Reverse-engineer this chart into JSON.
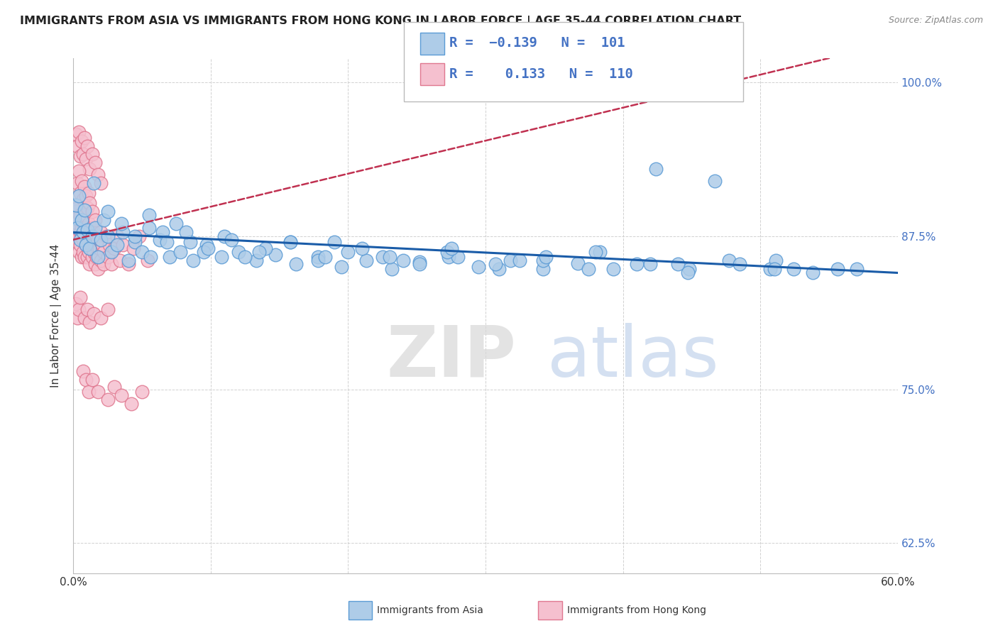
{
  "title": "IMMIGRANTS FROM ASIA VS IMMIGRANTS FROM HONG KONG IN LABOR FORCE | AGE 35-44 CORRELATION CHART",
  "source": "Source: ZipAtlas.com",
  "ylabel": "In Labor Force | Age 35-44",
  "x_min": 0.0,
  "x_max": 0.6,
  "y_min": 0.6,
  "y_max": 1.02,
  "y_ticks": [
    0.625,
    0.75,
    0.875,
    1.0
  ],
  "y_tick_labels": [
    "62.5%",
    "75.0%",
    "87.5%",
    "100.0%"
  ],
  "blue_color": "#aecce8",
  "blue_edge": "#5b9bd5",
  "pink_color": "#f5c0cf",
  "pink_edge": "#e07890",
  "blue_line_color": "#1a5ca8",
  "pink_line_color": "#c03050",
  "legend_box_blue": "#aecce8",
  "legend_box_pink": "#f5c0cf",
  "R_blue": -0.139,
  "N_blue": 101,
  "R_pink": 0.133,
  "N_pink": 110,
  "legend_label_blue": "Immigrants from Asia",
  "legend_label_pink": "Immigrants from Hong Kong",
  "blue_scatter_x": [
    0.001,
    0.002,
    0.003,
    0.004,
    0.005,
    0.006,
    0.007,
    0.008,
    0.009,
    0.01,
    0.012,
    0.014,
    0.016,
    0.018,
    0.02,
    0.022,
    0.025,
    0.028,
    0.032,
    0.036,
    0.04,
    0.045,
    0.05,
    0.056,
    0.063,
    0.07,
    0.078,
    0.087,
    0.097,
    0.108,
    0.12,
    0.133,
    0.147,
    0.162,
    0.178,
    0.195,
    0.213,
    0.232,
    0.252,
    0.273,
    0.295,
    0.318,
    0.342,
    0.367,
    0.393,
    0.42,
    0.448,
    0.477,
    0.507,
    0.538,
    0.57,
    0.055,
    0.065,
    0.075,
    0.085,
    0.095,
    0.11,
    0.125,
    0.14,
    0.158,
    0.178,
    0.2,
    0.225,
    0.252,
    0.28,
    0.31,
    0.342,
    0.375,
    0.41,
    0.447,
    0.485,
    0.524,
    0.015,
    0.025,
    0.035,
    0.045,
    0.055,
    0.068,
    0.082,
    0.098,
    0.115,
    0.135,
    0.158,
    0.183,
    0.21,
    0.24,
    0.272,
    0.307,
    0.344,
    0.383,
    0.424,
    0.467,
    0.511,
    0.556,
    0.19,
    0.23,
    0.275,
    0.325,
    0.38,
    0.44,
    0.51
  ],
  "blue_scatter_y": [
    0.89,
    0.9,
    0.882,
    0.908,
    0.872,
    0.888,
    0.878,
    0.896,
    0.868,
    0.88,
    0.865,
    0.875,
    0.882,
    0.858,
    0.872,
    0.888,
    0.875,
    0.862,
    0.868,
    0.878,
    0.855,
    0.87,
    0.862,
    0.858,
    0.872,
    0.858,
    0.862,
    0.855,
    0.868,
    0.858,
    0.862,
    0.855,
    0.86,
    0.852,
    0.858,
    0.85,
    0.855,
    0.848,
    0.854,
    0.858,
    0.85,
    0.855,
    0.848,
    0.853,
    0.848,
    0.852,
    0.848,
    0.855,
    0.848,
    0.845,
    0.848,
    0.892,
    0.878,
    0.885,
    0.87,
    0.862,
    0.875,
    0.858,
    0.865,
    0.87,
    0.855,
    0.862,
    0.858,
    0.852,
    0.858,
    0.848,
    0.855,
    0.848,
    0.852,
    0.845,
    0.852,
    0.848,
    0.918,
    0.895,
    0.885,
    0.875,
    0.882,
    0.87,
    0.878,
    0.865,
    0.872,
    0.862,
    0.87,
    0.858,
    0.865,
    0.855,
    0.862,
    0.852,
    0.858,
    0.862,
    0.93,
    0.92,
    0.855,
    0.848,
    0.87,
    0.858,
    0.865,
    0.855,
    0.862,
    0.852,
    0.848
  ],
  "pink_scatter_x": [
    0.001,
    0.001,
    0.001,
    0.001,
    0.002,
    0.002,
    0.002,
    0.003,
    0.003,
    0.003,
    0.004,
    0.004,
    0.004,
    0.005,
    0.005,
    0.005,
    0.006,
    0.006,
    0.006,
    0.007,
    0.007,
    0.007,
    0.008,
    0.008,
    0.008,
    0.009,
    0.009,
    0.01,
    0.01,
    0.01,
    0.011,
    0.011,
    0.012,
    0.012,
    0.013,
    0.013,
    0.014,
    0.014,
    0.015,
    0.015,
    0.016,
    0.016,
    0.017,
    0.017,
    0.018,
    0.018,
    0.019,
    0.02,
    0.02,
    0.021,
    0.022,
    0.022,
    0.024,
    0.025,
    0.026,
    0.028,
    0.03,
    0.032,
    0.034,
    0.036,
    0.04,
    0.044,
    0.048,
    0.054,
    0.002,
    0.003,
    0.004,
    0.005,
    0.006,
    0.007,
    0.008,
    0.009,
    0.01,
    0.012,
    0.014,
    0.016,
    0.018,
    0.02,
    0.003,
    0.004,
    0.005,
    0.006,
    0.007,
    0.008,
    0.009,
    0.01,
    0.011,
    0.012,
    0.014,
    0.016,
    0.002,
    0.003,
    0.004,
    0.005,
    0.008,
    0.01,
    0.012,
    0.015,
    0.02,
    0.025,
    0.007,
    0.009,
    0.011,
    0.014,
    0.018,
    0.025,
    0.03,
    0.035,
    0.042,
    0.05
  ],
  "pink_scatter_y": [
    0.882,
    0.895,
    0.878,
    0.9,
    0.888,
    0.875,
    0.895,
    0.87,
    0.885,
    0.898,
    0.875,
    0.888,
    0.862,
    0.878,
    0.892,
    0.868,
    0.882,
    0.875,
    0.858,
    0.872,
    0.885,
    0.862,
    0.878,
    0.892,
    0.858,
    0.875,
    0.868,
    0.882,
    0.858,
    0.872,
    0.885,
    0.862,
    0.878,
    0.852,
    0.868,
    0.882,
    0.858,
    0.875,
    0.862,
    0.878,
    0.852,
    0.868,
    0.875,
    0.858,
    0.872,
    0.848,
    0.865,
    0.878,
    0.855,
    0.868,
    0.852,
    0.862,
    0.875,
    0.858,
    0.868,
    0.852,
    0.865,
    0.875,
    0.855,
    0.868,
    0.852,
    0.865,
    0.875,
    0.855,
    0.958,
    0.948,
    0.96,
    0.94,
    0.952,
    0.942,
    0.955,
    0.938,
    0.948,
    0.93,
    0.942,
    0.935,
    0.925,
    0.918,
    0.918,
    0.928,
    0.91,
    0.92,
    0.905,
    0.915,
    0.908,
    0.898,
    0.91,
    0.902,
    0.895,
    0.888,
    0.82,
    0.808,
    0.815,
    0.825,
    0.808,
    0.815,
    0.805,
    0.812,
    0.808,
    0.815,
    0.765,
    0.758,
    0.748,
    0.758,
    0.748,
    0.742,
    0.752,
    0.745,
    0.738,
    0.748
  ]
}
